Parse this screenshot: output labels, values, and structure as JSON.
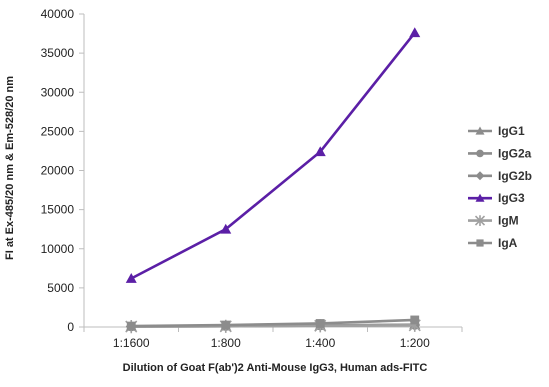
{
  "chart_data": {
    "type": "line",
    "title": "",
    "xlabel": "Dilution of Goat F(ab')2 Anti-Mouse IgG3, Human ads-FITC",
    "ylabel": "FI at Ex-485/20 nm & Em-528/20 nm",
    "categories": [
      "1:1600",
      "1:800",
      "1:400",
      "1:200"
    ],
    "ylim": [
      0,
      40000
    ],
    "yticks": [
      "0",
      "5000",
      "10000",
      "15000",
      "20000",
      "25000",
      "30000",
      "35000",
      "40000"
    ],
    "grid": false,
    "legend_position": "right",
    "series": [
      {
        "name": "IgG1",
        "values": [
          80,
          120,
          200,
          300
        ],
        "color": "#8c8c8c",
        "marker": "triangle"
      },
      {
        "name": "IgG2a",
        "values": [
          60,
          100,
          180,
          250
        ],
        "color": "#8c8c8c",
        "marker": "circle"
      },
      {
        "name": "IgG2b",
        "values": [
          70,
          110,
          190,
          260
        ],
        "color": "#8c8c8c",
        "marker": "diamond"
      },
      {
        "name": "IgG3",
        "values": [
          6200,
          12500,
          22400,
          37600
        ],
        "color": "#5b1fa6",
        "marker": "triangle"
      },
      {
        "name": "IgM",
        "values": [
          50,
          90,
          160,
          220
        ],
        "color": "#a0a0a0",
        "marker": "star"
      },
      {
        "name": "IgA",
        "values": [
          120,
          250,
          450,
          900
        ],
        "color": "#8c8c8c",
        "marker": "square"
      }
    ]
  }
}
